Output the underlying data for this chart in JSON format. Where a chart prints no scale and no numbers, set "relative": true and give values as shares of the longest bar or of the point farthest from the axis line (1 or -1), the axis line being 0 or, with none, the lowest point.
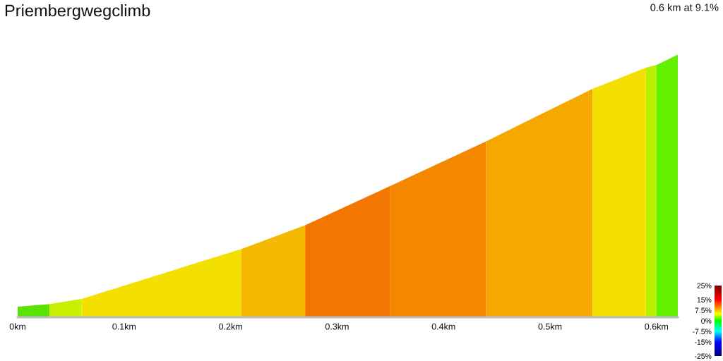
{
  "chart_data": {
    "type": "area",
    "title": "Priembergwegclimb",
    "subtitle": "0.6 km at 9.1%",
    "relative": true,
    "xlim": [
      0,
      0.62
    ],
    "xticks": [
      {
        "value": 0,
        "label": "0km"
      },
      {
        "value": 0.1,
        "label": "0.1km"
      },
      {
        "value": 0.2,
        "label": "0.2km"
      },
      {
        "value": 0.3,
        "label": "0.3km"
      },
      {
        "value": 0.4,
        "label": "0.4km"
      },
      {
        "value": 0.5,
        "label": "0.5km"
      },
      {
        "value": 0.6,
        "label": "0.6km"
      }
    ],
    "series": [
      {
        "color": "#58e400",
        "x": [
          0,
          0.03
        ],
        "values": [
          0.04,
          0.05
        ]
      },
      {
        "color": "#c8f000",
        "x": [
          0.03,
          0.06
        ],
        "values": [
          0.05,
          0.07
        ]
      },
      {
        "color": "#f4e000",
        "x": [
          0.06,
          0.21
        ],
        "values": [
          0.07,
          0.26
        ]
      },
      {
        "color": "#f4b800",
        "x": [
          0.21,
          0.27
        ],
        "values": [
          0.26,
          0.35
        ]
      },
      {
        "color": "#f27600",
        "x": [
          0.27,
          0.35
        ],
        "values": [
          0.35,
          0.5
        ]
      },
      {
        "color": "#f38800",
        "x": [
          0.35,
          0.44
        ],
        "values": [
          0.5,
          0.67
        ]
      },
      {
        "color": "#f4a800",
        "x": [
          0.44,
          0.54
        ],
        "values": [
          0.67,
          0.87
        ]
      },
      {
        "color": "#f4e000",
        "x": [
          0.54,
          0.59
        ],
        "values": [
          0.87,
          0.95
        ]
      },
      {
        "color": "#b4f000",
        "x": [
          0.59,
          0.6
        ],
        "values": [
          0.95,
          0.96
        ]
      },
      {
        "color": "#62f000",
        "x": [
          0.6,
          0.62
        ],
        "values": [
          0.96,
          1.0
        ]
      }
    ],
    "clim": [
      -25,
      25
    ],
    "cticks": [
      {
        "value": 25,
        "label": "25%"
      },
      {
        "value": 15,
        "label": "15%"
      },
      {
        "value": 7.5,
        "label": "7.5%"
      },
      {
        "value": 0,
        "label": "0%"
      },
      {
        "value": -7.5,
        "label": "-7.5%"
      },
      {
        "value": -15,
        "label": "-15%"
      },
      {
        "value": -25,
        "label": "-25%"
      }
    ]
  }
}
